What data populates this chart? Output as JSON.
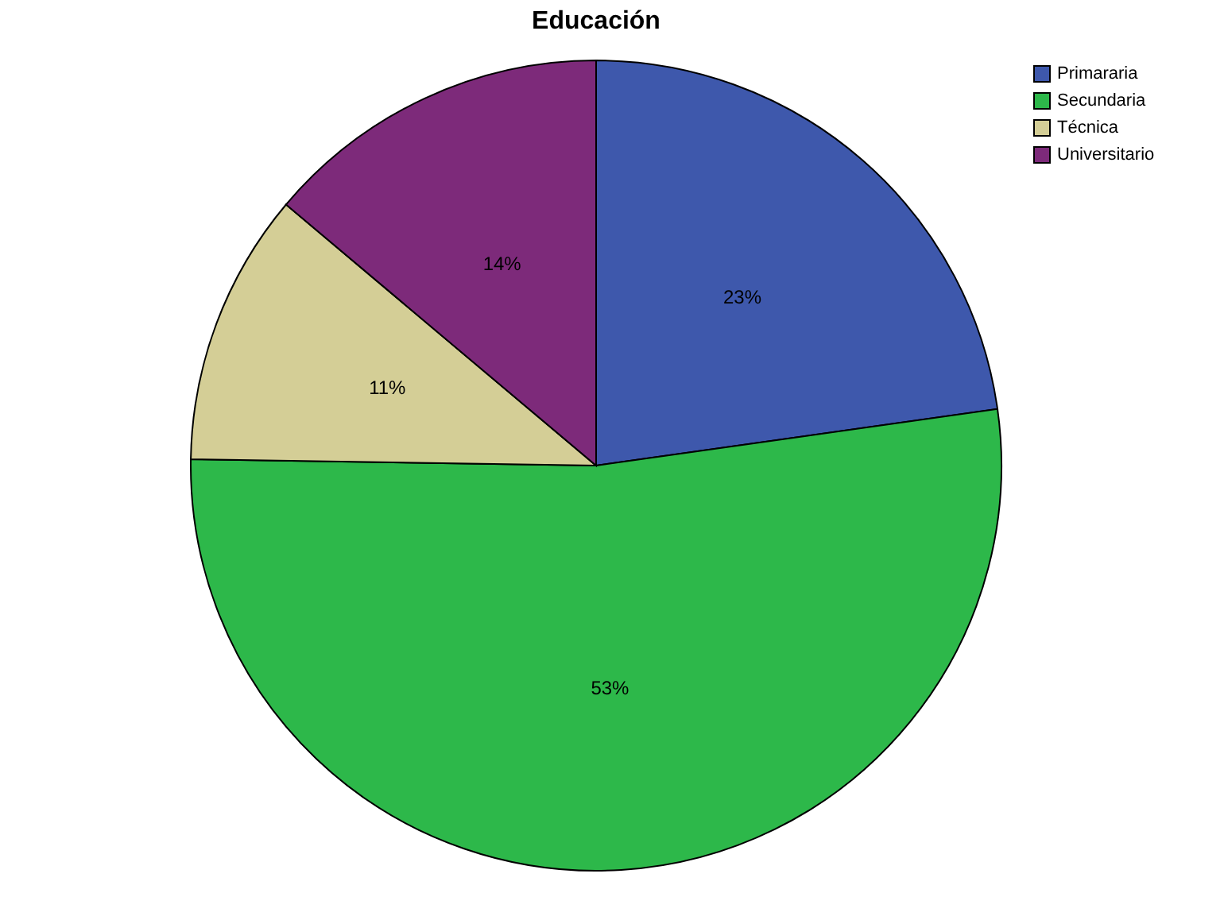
{
  "chart_data": {
    "type": "pie",
    "title": "Educación",
    "categories": [
      "Primararia",
      "Secundaria",
      "Técnica",
      "Universitario"
    ],
    "values": [
      23,
      53,
      11,
      14
    ],
    "colors": [
      "#3e58ac",
      "#2db84a",
      "#d4ce96",
      "#7d2a7a"
    ],
    "value_labels": [
      "23%",
      "53%",
      "11%",
      "14%"
    ],
    "legend": "top right"
  }
}
